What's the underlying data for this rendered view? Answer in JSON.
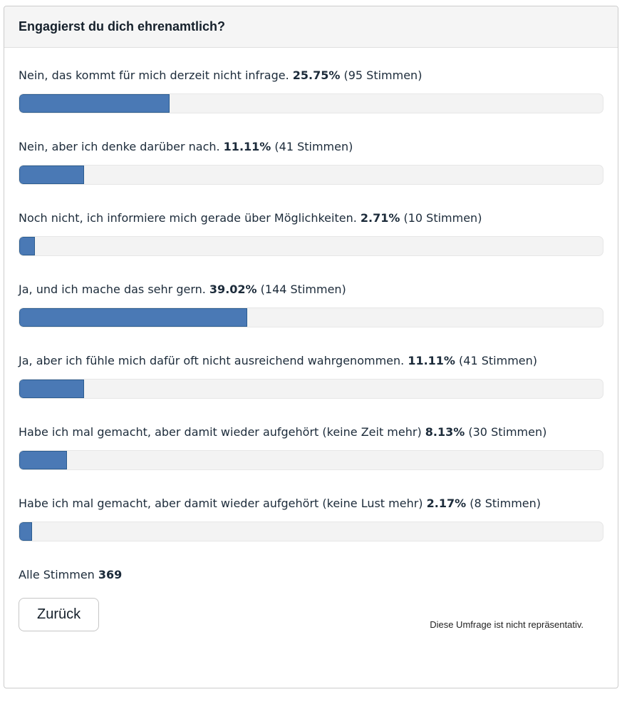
{
  "poll": {
    "title": "Engagierst du dich ehrenamtlich?",
    "options": [
      {
        "label": "Nein, das kommt für mich derzeit nicht infrage.",
        "percent_label": "25.75%",
        "votes_label": "(95 Stimmen)",
        "percent": 25.75,
        "votes": 95
      },
      {
        "label": "Nein, aber ich denke darüber nach.",
        "percent_label": "11.11%",
        "votes_label": "(41 Stimmen)",
        "percent": 11.11,
        "votes": 41
      },
      {
        "label": "Noch nicht, ich informiere mich gerade über Möglichkeiten.",
        "percent_label": "2.71%",
        "votes_label": "(10 Stimmen)",
        "percent": 2.71,
        "votes": 10
      },
      {
        "label": "Ja, und ich mache das sehr gern.",
        "percent_label": "39.02%",
        "votes_label": "(144 Stimmen)",
        "percent": 39.02,
        "votes": 144
      },
      {
        "label": "Ja, aber ich fühle mich dafür oft nicht ausreichend wahrgenommen.",
        "percent_label": "11.11%",
        "votes_label": "(41 Stimmen)",
        "percent": 11.11,
        "votes": 41
      },
      {
        "label": "Habe ich mal gemacht, aber damit wieder aufgehört (keine Zeit mehr)",
        "percent_label": "8.13%",
        "votes_label": "(30 Stimmen)",
        "percent": 8.13,
        "votes": 30
      },
      {
        "label": "Habe ich mal gemacht, aber damit wieder aufgehört (keine Lust mehr)",
        "percent_label": "2.17%",
        "votes_label": "(8 Stimmen)",
        "percent": 2.17,
        "votes": 8
      }
    ],
    "total_label": "Alle Stimmen",
    "total_votes": "369",
    "back_button_label": "Zurück",
    "disclaimer": "Diese Umfrage ist nicht repräsentativ."
  },
  "colors": {
    "bar_fill": "#4a79b5",
    "bar_border": "#2c5d90",
    "track_bg": "#f3f3f3",
    "text_dark_navy": "#1c2b3a",
    "header_bg": "#f5f5f5",
    "card_border": "#cccccc"
  },
  "chart_data": {
    "type": "bar",
    "title": "Engagierst du dich ehrenamtlich?",
    "orientation": "horizontal",
    "categories": [
      "Nein, das kommt für mich derzeit nicht infrage.",
      "Nein, aber ich denke darüber nach.",
      "Noch nicht, ich informiere mich gerade über Möglichkeiten.",
      "Ja, und ich mache das sehr gern.",
      "Ja, aber ich fühle mich dafür oft nicht ausreichend wahrgenommen.",
      "Habe ich mal gemacht, aber damit wieder aufgehört (keine Zeit mehr)",
      "Habe ich mal gemacht, aber damit wieder aufgehört (keine Lust mehr)"
    ],
    "values_percent": [
      25.75,
      11.11,
      2.71,
      39.02,
      11.11,
      8.13,
      2.17
    ],
    "values_votes": [
      95,
      41,
      10,
      144,
      41,
      30,
      8
    ],
    "total_votes": 369,
    "xlim": [
      0,
      100
    ],
    "grid": false,
    "legend": false
  }
}
